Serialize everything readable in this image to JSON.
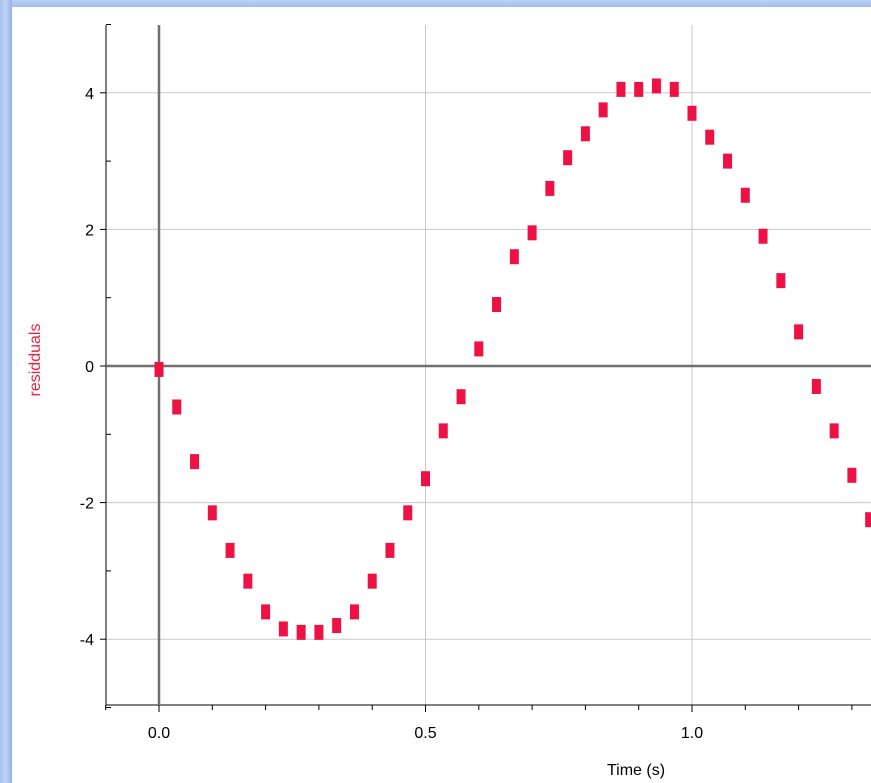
{
  "chart_data": {
    "type": "scatter",
    "title": "",
    "xlabel": "Time (s)",
    "ylabel": "residduals",
    "xlim": [
      -0.1,
      1.33
    ],
    "ylim": [
      -5,
      5
    ],
    "x_ticks": [
      0.0,
      0.5,
      1.0
    ],
    "x_tick_labels": [
      "0.0",
      "0.5",
      "1.0"
    ],
    "y_ticks": [
      -4,
      -2,
      0,
      2,
      4
    ],
    "y_tick_labels": [
      "-4",
      "-2",
      "0",
      "2",
      "4"
    ],
    "grid": true,
    "legend": "none",
    "marker_color": "#ee1144",
    "series": [
      {
        "x": [
          0.0,
          0.0333,
          0.0667,
          0.1,
          0.1333,
          0.1667,
          0.2,
          0.2333,
          0.2667,
          0.3,
          0.3333,
          0.3667,
          0.4,
          0.4333,
          0.4667,
          0.5,
          0.5333,
          0.5667,
          0.6,
          0.6333,
          0.6667,
          0.7,
          0.7333,
          0.7667,
          0.8,
          0.8333,
          0.8667,
          0.9,
          0.9333,
          0.9667,
          1.0,
          1.0333,
          1.0667,
          1.1,
          1.1333,
          1.1667,
          1.2,
          1.2333,
          1.2667,
          1.3,
          1.3333
        ],
        "y": [
          -0.05,
          -0.6,
          -1.4,
          -2.15,
          -2.7,
          -3.15,
          -3.6,
          -3.85,
          -3.9,
          -3.9,
          -3.8,
          -3.6,
          -3.15,
          -2.7,
          -2.15,
          -1.65,
          -0.95,
          -0.45,
          0.25,
          0.9,
          1.6,
          1.95,
          2.6,
          3.05,
          3.4,
          3.75,
          4.05,
          4.05,
          4.1,
          4.05,
          3.7,
          3.35,
          3.0,
          2.5,
          1.9,
          1.25,
          0.5,
          -0.3,
          -0.95,
          -1.6,
          -2.25
        ]
      }
    ]
  }
}
